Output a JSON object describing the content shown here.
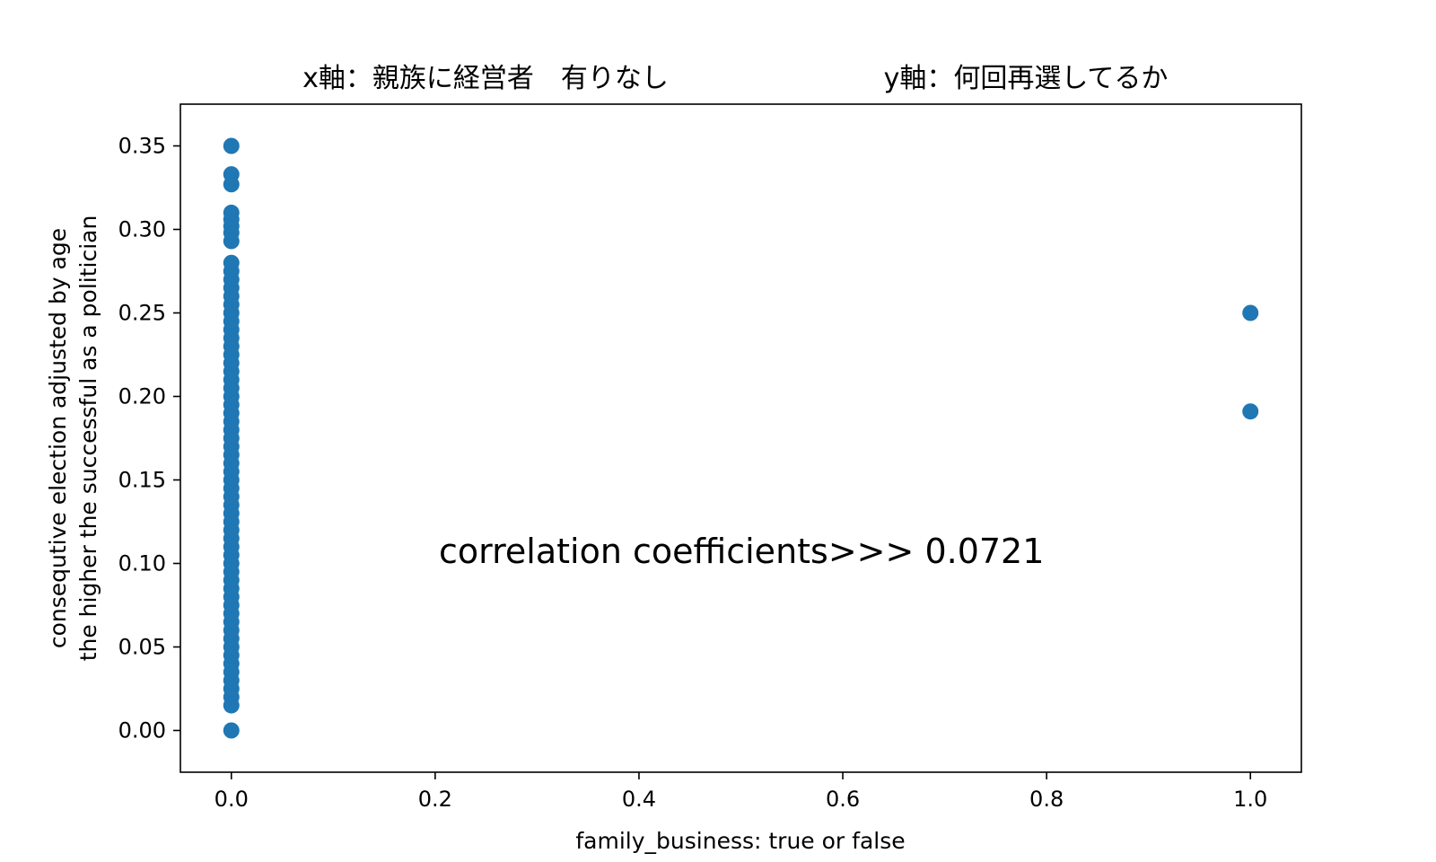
{
  "chart_data": {
    "type": "scatter",
    "title_left": "x軸：親族に経営者　有りなし",
    "title_right": "y軸：何回再選してるか",
    "xlabel": "family_business: true or false",
    "ylabel_line1": "consequtive election adjusted by age",
    "ylabel_line2": "the higher the successful as a politician",
    "annotation": "correlation coefficients>>> 0.0721",
    "xlim": [
      -0.05,
      1.05
    ],
    "ylim": [
      -0.025,
      0.375
    ],
    "x_ticks": [
      0.0,
      0.2,
      0.4,
      0.6,
      0.8,
      1.0
    ],
    "x_tick_labels": [
      "0.0",
      "0.2",
      "0.4",
      "0.6",
      "0.8",
      "1.0"
    ],
    "y_ticks": [
      0.0,
      0.05,
      0.1,
      0.15,
      0.2,
      0.25,
      0.3,
      0.35
    ],
    "y_tick_labels": [
      "0.00",
      "0.05",
      "0.10",
      "0.15",
      "0.20",
      "0.25",
      "0.30",
      "0.35"
    ],
    "grid": false,
    "marker_color": "#1f77b4",
    "points": [
      {
        "x": 0,
        "y": 0.0
      },
      {
        "x": 0,
        "y": 0.015
      },
      {
        "x": 0,
        "y": 0.02
      },
      {
        "x": 0,
        "y": 0.025
      },
      {
        "x": 0,
        "y": 0.03
      },
      {
        "x": 0,
        "y": 0.035
      },
      {
        "x": 0,
        "y": 0.04
      },
      {
        "x": 0,
        "y": 0.045
      },
      {
        "x": 0,
        "y": 0.05
      },
      {
        "x": 0,
        "y": 0.055
      },
      {
        "x": 0,
        "y": 0.06
      },
      {
        "x": 0,
        "y": 0.065
      },
      {
        "x": 0,
        "y": 0.07
      },
      {
        "x": 0,
        "y": 0.075
      },
      {
        "x": 0,
        "y": 0.08
      },
      {
        "x": 0,
        "y": 0.085
      },
      {
        "x": 0,
        "y": 0.09
      },
      {
        "x": 0,
        "y": 0.095
      },
      {
        "x": 0,
        "y": 0.1
      },
      {
        "x": 0,
        "y": 0.105
      },
      {
        "x": 0,
        "y": 0.11
      },
      {
        "x": 0,
        "y": 0.115
      },
      {
        "x": 0,
        "y": 0.12
      },
      {
        "x": 0,
        "y": 0.125
      },
      {
        "x": 0,
        "y": 0.13
      },
      {
        "x": 0,
        "y": 0.135
      },
      {
        "x": 0,
        "y": 0.14
      },
      {
        "x": 0,
        "y": 0.145
      },
      {
        "x": 0,
        "y": 0.15
      },
      {
        "x": 0,
        "y": 0.155
      },
      {
        "x": 0,
        "y": 0.16
      },
      {
        "x": 0,
        "y": 0.165
      },
      {
        "x": 0,
        "y": 0.17
      },
      {
        "x": 0,
        "y": 0.175
      },
      {
        "x": 0,
        "y": 0.18
      },
      {
        "x": 0,
        "y": 0.185
      },
      {
        "x": 0,
        "y": 0.19
      },
      {
        "x": 0,
        "y": 0.195
      },
      {
        "x": 0,
        "y": 0.2
      },
      {
        "x": 0,
        "y": 0.205
      },
      {
        "x": 0,
        "y": 0.21
      },
      {
        "x": 0,
        "y": 0.215
      },
      {
        "x": 0,
        "y": 0.22
      },
      {
        "x": 0,
        "y": 0.225
      },
      {
        "x": 0,
        "y": 0.23
      },
      {
        "x": 0,
        "y": 0.235
      },
      {
        "x": 0,
        "y": 0.24
      },
      {
        "x": 0,
        "y": 0.245
      },
      {
        "x": 0,
        "y": 0.25
      },
      {
        "x": 0,
        "y": 0.255
      },
      {
        "x": 0,
        "y": 0.26
      },
      {
        "x": 0,
        "y": 0.265
      },
      {
        "x": 0,
        "y": 0.27
      },
      {
        "x": 0,
        "y": 0.275
      },
      {
        "x": 0,
        "y": 0.28
      },
      {
        "x": 0,
        "y": 0.293
      },
      {
        "x": 0,
        "y": 0.298
      },
      {
        "x": 0,
        "y": 0.302
      },
      {
        "x": 0,
        "y": 0.306
      },
      {
        "x": 0,
        "y": 0.31
      },
      {
        "x": 0,
        "y": 0.327
      },
      {
        "x": 0,
        "y": 0.333
      },
      {
        "x": 0,
        "y": 0.35
      },
      {
        "x": 1,
        "y": 0.191
      },
      {
        "x": 1,
        "y": 0.25
      }
    ]
  }
}
